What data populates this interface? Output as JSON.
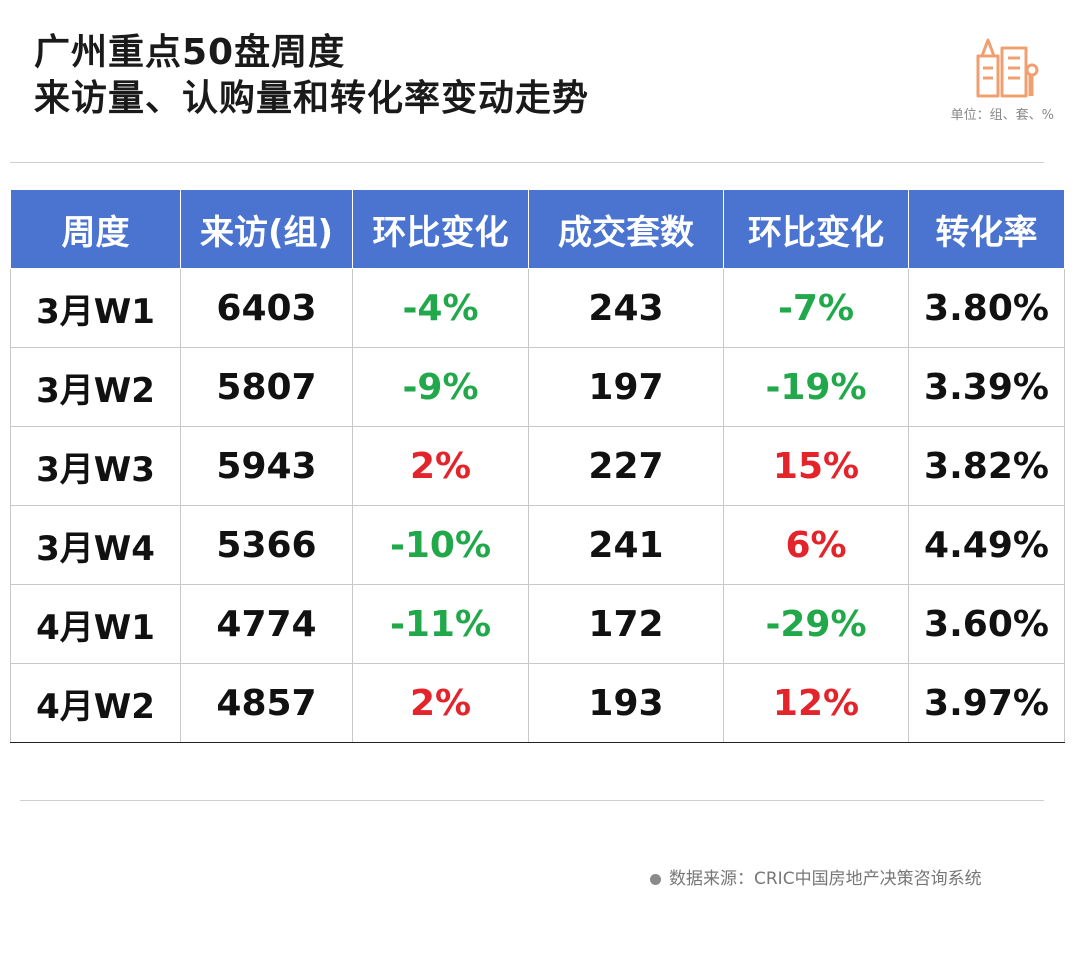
{
  "header": {
    "title_line1": "广州重点50盘周度",
    "title_line2": "来访量、认购量和转化率变动走势",
    "unit_note": "单位：组、套、%"
  },
  "colors": {
    "header_bg": "#4a74d0",
    "decrease": "#21a84a",
    "increase": "#e3242b",
    "logo": "#f0a070"
  },
  "icons": {
    "logo": "city-buildings-icon",
    "source_bullet": "dot-icon"
  },
  "chart_data": {
    "type": "table",
    "columns": [
      "周度",
      "来访(组)",
      "环比变化",
      "成交套数",
      "环比变化",
      "转化率"
    ],
    "rows": [
      {
        "week": "3月W1",
        "visits": "6403",
        "visits_mom": "-4%",
        "visits_dir": "down",
        "deals": "243",
        "deals_mom": "-7%",
        "deals_dir": "down",
        "conversion": "3.80%"
      },
      {
        "week": "3月W2",
        "visits": "5807",
        "visits_mom": "-9%",
        "visits_dir": "down",
        "deals": "197",
        "deals_mom": "-19%",
        "deals_dir": "down",
        "conversion": "3.39%"
      },
      {
        "week": "3月W3",
        "visits": "5943",
        "visits_mom": "2%",
        "visits_dir": "up",
        "deals": "227",
        "deals_mom": "15%",
        "deals_dir": "up",
        "conversion": "3.82%"
      },
      {
        "week": "3月W4",
        "visits": "5366",
        "visits_mom": "-10%",
        "visits_dir": "down",
        "deals": "241",
        "deals_mom": "6%",
        "deals_dir": "up",
        "conversion": "4.49%"
      },
      {
        "week": "4月W1",
        "visits": "4774",
        "visits_mom": "-11%",
        "visits_dir": "down",
        "deals": "172",
        "deals_mom": "-29%",
        "deals_dir": "down",
        "conversion": "3.60%"
      },
      {
        "week": "4月W2",
        "visits": "4857",
        "visits_mom": "2%",
        "visits_dir": "up",
        "deals": "193",
        "deals_mom": "12%",
        "deals_dir": "up",
        "conversion": "3.97%"
      }
    ]
  },
  "footer": {
    "source": "数据来源：CRIC中国房地产决策咨询系统"
  }
}
